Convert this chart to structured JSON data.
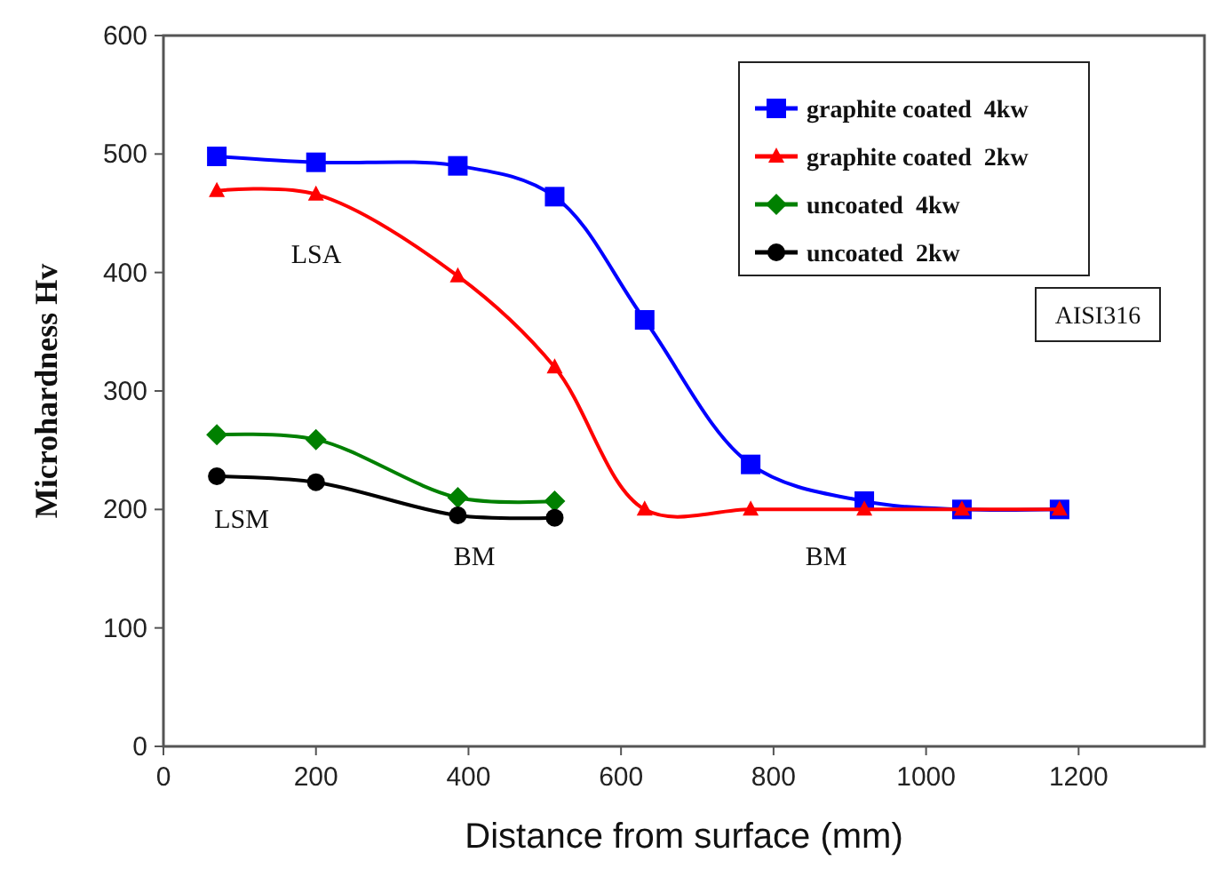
{
  "chart_data": {
    "type": "line",
    "xlabel": "Distance from surface (mm)",
    "ylabel": "Microhardness Hv",
    "xlim": [
      0,
      1365
    ],
    "xticks": [
      0,
      200,
      400,
      600,
      800,
      1000,
      1200
    ],
    "ylim": [
      0,
      600
    ],
    "yticks": [
      0,
      100,
      200,
      300,
      400,
      500,
      600
    ],
    "grid": false,
    "legend": "top right",
    "series": [
      {
        "name": "graphite coated  4kw",
        "color": "#0000ff",
        "marker": "square",
        "x": [
          70,
          200,
          386,
          513,
          631,
          770,
          919,
          1047,
          1175
        ],
        "values": [
          498,
          493,
          490,
          464,
          360,
          238,
          207,
          200,
          200
        ]
      },
      {
        "name": "graphite coated  2kw",
        "color": "#ff0000",
        "marker": "triangle",
        "x": [
          70,
          200,
          386,
          513,
          631,
          770,
          919,
          1047,
          1175
        ],
        "values": [
          469,
          466,
          397,
          320,
          200,
          200,
          200,
          200,
          200
        ]
      },
      {
        "name": "uncoated  4kw",
        "color": "#008000",
        "marker": "diamond",
        "x": [
          70,
          200,
          386,
          513
        ],
        "values": [
          263,
          259,
          210,
          207
        ]
      },
      {
        "name": "uncoated  2kw",
        "color": "#000000",
        "marker": "circle",
        "x": [
          70,
          200,
          386,
          513
        ],
        "values": [
          228,
          223,
          195,
          193
        ]
      }
    ],
    "annotations": [
      "LSA",
      "LSM",
      "BM",
      "BM",
      "AISI316"
    ]
  }
}
